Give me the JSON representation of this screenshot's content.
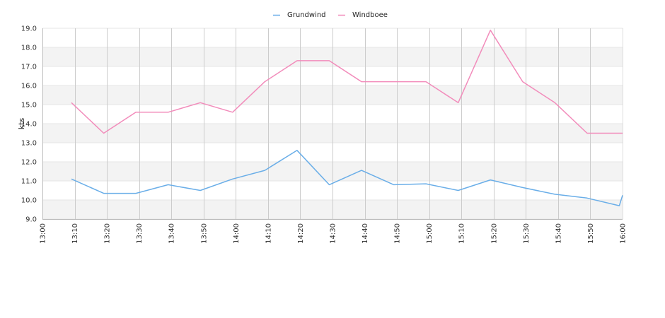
{
  "chart_data": {
    "type": "line",
    "title": "",
    "xlabel": "",
    "ylabel": "kts",
    "x": [
      "13:00",
      "13:10",
      "13:20",
      "13:30",
      "13:40",
      "13:50",
      "14:00",
      "14:10",
      "14:20",
      "14:30",
      "14:40",
      "14:50",
      "15:00",
      "15:10",
      "15:20",
      "15:30",
      "15:40",
      "15:50",
      "16:00"
    ],
    "ylim": [
      9.0,
      19.0
    ],
    "yticks": [
      "9.0",
      "10.0",
      "11.0",
      "12.0",
      "13.0",
      "14.0",
      "15.0",
      "16.0",
      "17.0",
      "18.0",
      "19.0"
    ],
    "grid": true,
    "legend_position": "top-center",
    "series": [
      {
        "name": "Grundwind",
        "color": "#6aaee8",
        "points": [
          [
            "13:09",
            11.1
          ],
          [
            "13:19",
            10.35
          ],
          [
            "13:29",
            10.35
          ],
          [
            "13:39",
            10.8
          ],
          [
            "13:49",
            10.5
          ],
          [
            "13:59",
            11.1
          ],
          [
            "14:09",
            11.55
          ],
          [
            "14:19",
            12.6
          ],
          [
            "14:29",
            10.8
          ],
          [
            "14:39",
            11.55
          ],
          [
            "14:49",
            10.8
          ],
          [
            "14:59",
            10.85
          ],
          [
            "15:09",
            10.5
          ],
          [
            "15:19",
            11.05
          ],
          [
            "15:29",
            10.65
          ],
          [
            "15:39",
            10.3
          ],
          [
            "15:49",
            10.1
          ],
          [
            "15:59",
            9.7
          ],
          [
            "16:00",
            10.25
          ]
        ]
      },
      {
        "name": "Windboee",
        "color": "#f28cbb",
        "points": [
          [
            "13:09",
            15.1
          ],
          [
            "13:19",
            13.5
          ],
          [
            "13:29",
            14.6
          ],
          [
            "13:39",
            14.6
          ],
          [
            "13:49",
            15.1
          ],
          [
            "13:59",
            14.6
          ],
          [
            "14:09",
            16.2
          ],
          [
            "14:19",
            17.3
          ],
          [
            "14:29",
            17.3
          ],
          [
            "14:39",
            16.2
          ],
          [
            "14:49",
            16.2
          ],
          [
            "14:59",
            16.2
          ],
          [
            "15:09",
            15.1
          ],
          [
            "15:19",
            18.9
          ],
          [
            "15:29",
            16.2
          ],
          [
            "15:39",
            15.1
          ],
          [
            "15:49",
            13.5
          ],
          [
            "15:59",
            13.5
          ],
          [
            "16:00",
            13.5
          ]
        ]
      }
    ]
  }
}
